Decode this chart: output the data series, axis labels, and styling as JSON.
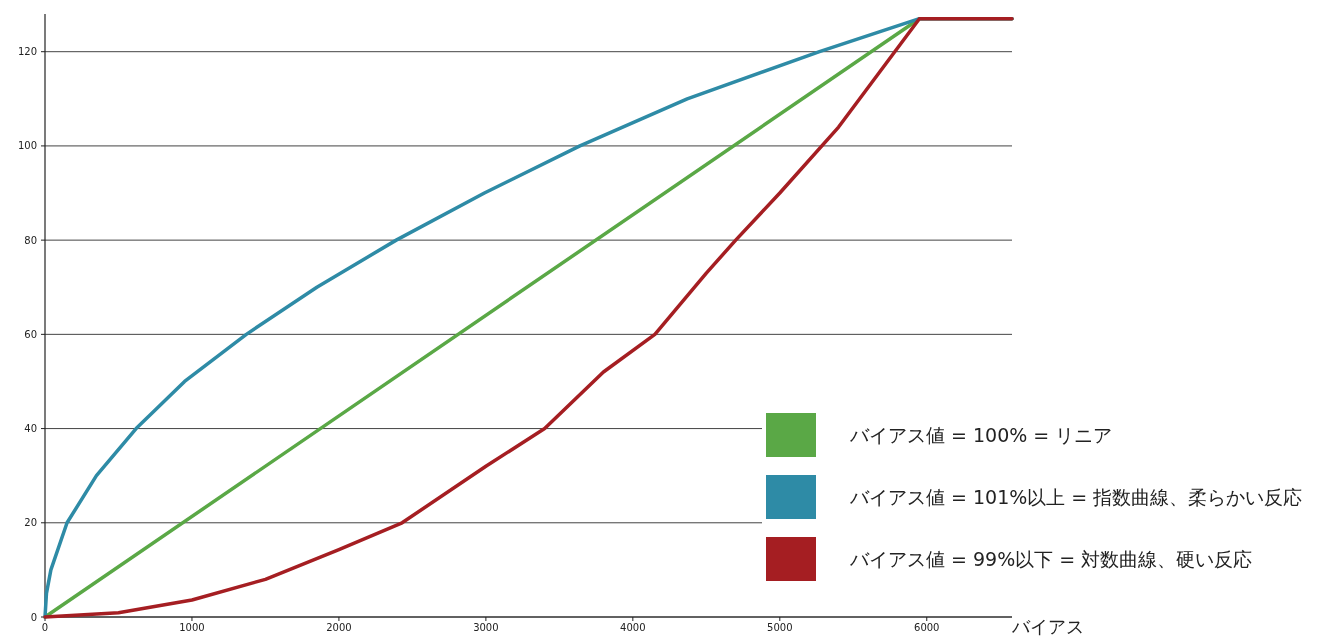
{
  "chart_data": {
    "type": "line",
    "xlabel": "バイアス",
    "xlim": [
      0,
      6580
    ],
    "ylim": [
      0,
      128
    ],
    "xticks": [
      0,
      1000,
      2000,
      3000,
      4000,
      5000,
      6000
    ],
    "yticks": [
      0,
      20,
      40,
      60,
      80,
      100,
      120
    ],
    "grid": "y",
    "legend": "bottom right",
    "marker": "none",
    "line_style": "solid",
    "series": [
      {
        "name": "バイアス値 = 100%  = リニア",
        "color": "#5aa846",
        "x": [
          0,
          5950,
          6580
        ],
        "values": [
          0,
          127,
          127
        ]
      },
      {
        "name": "バイアス値 = 101%以上  = 指数曲線、柔らかい反応",
        "color": "#2e8ba6",
        "x": [
          0,
          10,
          40,
          150,
          350,
          620,
          950,
          1370,
          1850,
          2390,
          2990,
          3640,
          4370,
          5270,
          5950,
          6580
        ],
        "values": [
          0,
          5,
          10,
          20,
          30,
          40,
          50,
          60,
          70,
          80,
          90,
          100,
          110,
          120,
          127,
          127
        ]
      },
      {
        "name": "バイアス値 = 99%以下  = 対数曲線、硬い反応",
        "color": "#a51e22",
        "x": [
          0,
          500,
          1000,
          1500,
          2000,
          2430,
          3000,
          3400,
          3800,
          4150,
          4500,
          4700,
          5000,
          5400,
          5950,
          6580
        ],
        "values": [
          0,
          0.9,
          3.6,
          8,
          14.3,
          20,
          32,
          40,
          52,
          60,
          73,
          80,
          90,
          104,
          127,
          127
        ]
      }
    ]
  }
}
